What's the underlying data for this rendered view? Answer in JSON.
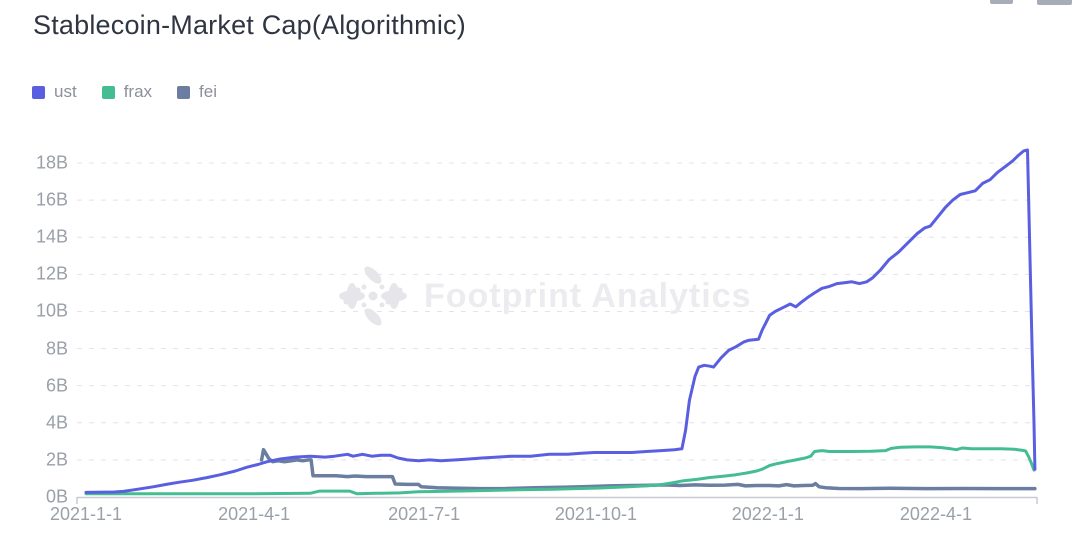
{
  "header": {
    "title": "Stablecoin-Market Cap(Algorithmic)"
  },
  "toolbar": {
    "partial_icon_count": 2
  },
  "legend": {
    "items": [
      {
        "label": "ust",
        "color": "#595FE0"
      },
      {
        "label": "frax",
        "color": "#44BD92"
      },
      {
        "label": "fei",
        "color": "#6B7EA1"
      }
    ]
  },
  "watermark": {
    "text": "Footprint Analytics",
    "logo": "flower-burst-icon"
  },
  "chart_data": {
    "type": "line",
    "title": "Stablecoin-Market Cap(Algorithmic)",
    "legend_position": "top-left",
    "grid": {
      "horizontal_gridlines": "dashed",
      "vertical_gridlines": false
    },
    "x_axis": {
      "type": "time",
      "epoch_date": "2021-1-1",
      "tick_labels": [
        "2021-1-1",
        "2021-4-1",
        "2021-7-1",
        "2021-10-1",
        "2022-1-1",
        "2022-4-1"
      ]
    },
    "y_axis": {
      "min": 0,
      "max": 18,
      "step": 2,
      "unit": "B",
      "tick_labels": [
        "0B",
        "2B",
        "4B",
        "6B",
        "8B",
        "10B",
        "12B",
        "14B",
        "16B",
        "18B"
      ]
    },
    "series": [
      {
        "name": "ust",
        "color": "#595FE0",
        "points_days_vs_billions": [
          [
            0,
            0.25
          ],
          [
            15,
            0.27
          ],
          [
            20,
            0.3
          ],
          [
            33,
            0.5
          ],
          [
            36,
            0.55
          ],
          [
            43,
            0.68
          ],
          [
            50,
            0.8
          ],
          [
            57,
            0.9
          ],
          [
            65,
            1.05
          ],
          [
            72,
            1.2
          ],
          [
            80,
            1.4
          ],
          [
            86,
            1.6
          ],
          [
            92,
            1.75
          ],
          [
            97,
            1.9
          ],
          [
            104,
            2.05
          ],
          [
            112,
            2.15
          ],
          [
            120,
            2.2
          ],
          [
            128,
            2.15
          ],
          [
            133,
            2.2
          ],
          [
            140,
            2.3
          ],
          [
            143,
            2.2
          ],
          [
            148,
            2.3
          ],
          [
            153,
            2.2
          ],
          [
            158,
            2.25
          ],
          [
            163,
            2.25
          ],
          [
            167,
            2.1
          ],
          [
            172,
            2.0
          ],
          [
            178,
            1.95
          ],
          [
            184,
            2.0
          ],
          [
            190,
            1.95
          ],
          [
            198,
            2.0
          ],
          [
            205,
            2.05
          ],
          [
            212,
            2.1
          ],
          [
            220,
            2.15
          ],
          [
            228,
            2.2
          ],
          [
            238,
            2.2
          ],
          [
            248,
            2.3
          ],
          [
            258,
            2.3
          ],
          [
            264,
            2.35
          ],
          [
            272,
            2.4
          ],
          [
            282,
            2.4
          ],
          [
            292,
            2.4
          ],
          [
            300,
            2.45
          ],
          [
            308,
            2.5
          ],
          [
            315,
            2.55
          ],
          [
            319,
            2.6
          ],
          [
            321,
            3.6
          ],
          [
            323,
            5.2
          ],
          [
            326,
            6.5
          ],
          [
            328,
            7.0
          ],
          [
            331,
            7.1
          ],
          [
            334,
            7.05
          ],
          [
            336,
            7.0
          ],
          [
            340,
            7.5
          ],
          [
            344,
            7.9
          ],
          [
            348,
            8.1
          ],
          [
            352,
            8.35
          ],
          [
            355,
            8.45
          ],
          [
            360,
            8.5
          ],
          [
            362,
            9.0
          ],
          [
            364,
            9.4
          ],
          [
            366,
            9.8
          ],
          [
            369,
            10.0
          ],
          [
            373,
            10.2
          ],
          [
            377,
            10.4
          ],
          [
            380,
            10.25
          ],
          [
            383,
            10.5
          ],
          [
            387,
            10.8
          ],
          [
            390,
            11.0
          ],
          [
            394,
            11.25
          ],
          [
            398,
            11.35
          ],
          [
            402,
            11.5
          ],
          [
            406,
            11.55
          ],
          [
            410,
            11.6
          ],
          [
            414,
            11.5
          ],
          [
            418,
            11.6
          ],
          [
            421,
            11.8
          ],
          [
            425,
            12.2
          ],
          [
            430,
            12.8
          ],
          [
            435,
            13.2
          ],
          [
            440,
            13.7
          ],
          [
            445,
            14.2
          ],
          [
            449,
            14.5
          ],
          [
            452,
            14.6
          ],
          [
            456,
            15.1
          ],
          [
            460,
            15.6
          ],
          [
            464,
            16.0
          ],
          [
            468,
            16.3
          ],
          [
            472,
            16.4
          ],
          [
            476,
            16.5
          ],
          [
            480,
            16.9
          ],
          [
            484,
            17.1
          ],
          [
            488,
            17.5
          ],
          [
            492,
            17.8
          ],
          [
            496,
            18.1
          ],
          [
            499,
            18.4
          ],
          [
            502,
            18.65
          ],
          [
            504,
            18.7
          ],
          [
            505,
            14.5
          ],
          [
            506.5,
            8.0
          ],
          [
            507.5,
            4.0
          ],
          [
            508,
            1.5
          ]
        ]
      },
      {
        "name": "frax",
        "color": "#44BD92",
        "points_days_vs_billions": [
          [
            0,
            0.18
          ],
          [
            30,
            0.17
          ],
          [
            60,
            0.18
          ],
          [
            90,
            0.18
          ],
          [
            120,
            0.2
          ],
          [
            125,
            0.32
          ],
          [
            141,
            0.32
          ],
          [
            145,
            0.18
          ],
          [
            155,
            0.2
          ],
          [
            168,
            0.22
          ],
          [
            178,
            0.28
          ],
          [
            190,
            0.3
          ],
          [
            205,
            0.33
          ],
          [
            220,
            0.36
          ],
          [
            235,
            0.4
          ],
          [
            250,
            0.42
          ],
          [
            262,
            0.45
          ],
          [
            273,
            0.48
          ],
          [
            283,
            0.52
          ],
          [
            292,
            0.56
          ],
          [
            300,
            0.6
          ],
          [
            307,
            0.65
          ],
          [
            313,
            0.75
          ],
          [
            320,
            0.88
          ],
          [
            327,
            0.95
          ],
          [
            334,
            1.05
          ],
          [
            341,
            1.12
          ],
          [
            348,
            1.2
          ],
          [
            354,
            1.3
          ],
          [
            359,
            1.4
          ],
          [
            362,
            1.5
          ],
          [
            366,
            1.7
          ],
          [
            370,
            1.8
          ],
          [
            375,
            1.9
          ],
          [
            380,
            2.0
          ],
          [
            385,
            2.1
          ],
          [
            388,
            2.2
          ],
          [
            390,
            2.45
          ],
          [
            394,
            2.5
          ],
          [
            398,
            2.45
          ],
          [
            410,
            2.45
          ],
          [
            420,
            2.47
          ],
          [
            428,
            2.5
          ],
          [
            431,
            2.62
          ],
          [
            436,
            2.68
          ],
          [
            444,
            2.7
          ],
          [
            452,
            2.7
          ],
          [
            458,
            2.66
          ],
          [
            463,
            2.6
          ],
          [
            466,
            2.55
          ],
          [
            469,
            2.64
          ],
          [
            474,
            2.6
          ],
          [
            482,
            2.6
          ],
          [
            490,
            2.6
          ],
          [
            497,
            2.57
          ],
          [
            501,
            2.52
          ],
          [
            503,
            2.48
          ],
          [
            504.5,
            2.2
          ],
          [
            506,
            1.85
          ],
          [
            507.5,
            1.45
          ],
          [
            508,
            1.55
          ]
        ]
      },
      {
        "name": "fei",
        "color": "#6B7EA1",
        "points_days_vs_billions": [
          [
            94,
            2.0
          ],
          [
            95,
            2.55
          ],
          [
            96.5,
            2.3
          ],
          [
            98,
            2.05
          ],
          [
            100,
            1.9
          ],
          [
            103,
            1.95
          ],
          [
            106,
            1.9
          ],
          [
            110,
            1.95
          ],
          [
            113,
            2.0
          ],
          [
            116,
            1.95
          ],
          [
            119,
            2.0
          ],
          [
            120.5,
            2.0
          ],
          [
            121.5,
            1.15
          ],
          [
            134,
            1.15
          ],
          [
            140,
            1.1
          ],
          [
            144,
            1.13
          ],
          [
            150,
            1.1
          ],
          [
            158,
            1.1
          ],
          [
            164,
            1.1
          ],
          [
            165.5,
            0.7
          ],
          [
            172,
            0.68
          ],
          [
            178,
            0.68
          ],
          [
            179.5,
            0.55
          ],
          [
            188,
            0.5
          ],
          [
            200,
            0.47
          ],
          [
            212,
            0.45
          ],
          [
            225,
            0.46
          ],
          [
            240,
            0.5
          ],
          [
            255,
            0.53
          ],
          [
            268,
            0.56
          ],
          [
            280,
            0.6
          ],
          [
            292,
            0.62
          ],
          [
            302,
            0.63
          ],
          [
            310,
            0.65
          ],
          [
            318,
            0.62
          ],
          [
            326,
            0.65
          ],
          [
            334,
            0.63
          ],
          [
            342,
            0.64
          ],
          [
            349,
            0.68
          ],
          [
            353,
            0.6
          ],
          [
            359,
            0.62
          ],
          [
            366,
            0.62
          ],
          [
            371,
            0.6
          ],
          [
            375,
            0.67
          ],
          [
            379,
            0.6
          ],
          [
            384,
            0.62
          ],
          [
            389,
            0.63
          ],
          [
            390.5,
            0.72
          ],
          [
            392.5,
            0.55
          ],
          [
            396,
            0.5
          ],
          [
            403,
            0.46
          ],
          [
            415,
            0.45
          ],
          [
            430,
            0.47
          ],
          [
            450,
            0.45
          ],
          [
            470,
            0.46
          ],
          [
            490,
            0.45
          ],
          [
            508,
            0.45
          ]
        ]
      }
    ]
  }
}
